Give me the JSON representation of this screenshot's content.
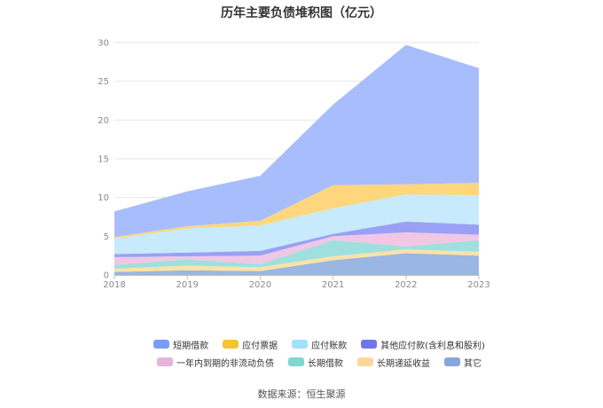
{
  "chart_data": {
    "type": "area",
    "stacked": true,
    "title": "历年主要负债堆积图（亿元）",
    "categories": [
      "2018",
      "2019",
      "2020",
      "2021",
      "2022",
      "2023"
    ],
    "ylim": [
      0,
      30
    ],
    "yticks": [
      0,
      5,
      10,
      15,
      20,
      25,
      30
    ],
    "grid": true,
    "legend_position": "bottom",
    "series": [
      {
        "name": "其它",
        "color": "#9ab6e2",
        "values": [
          0.4,
          0.6,
          0.5,
          1.9,
          2.8,
          2.5
        ]
      },
      {
        "name": "长期递延收益",
        "color": "#fde2a6",
        "values": [
          0.4,
          0.6,
          0.5,
          0.5,
          0.5,
          0.5
        ]
      },
      {
        "name": "长期借款",
        "color": "#9fe0de",
        "values": [
          0.5,
          0.8,
          0.4,
          2.1,
          0.4,
          1.5
        ]
      },
      {
        "name": "一年内到期的非流动负债",
        "color": "#f1c7e6",
        "values": [
          1.0,
          0.4,
          1.1,
          0.5,
          1.8,
          0.7
        ]
      },
      {
        "name": "其他应付款(含利息和股利)",
        "color": "#9aa1f4",
        "values": [
          0.4,
          0.5,
          0.6,
          0.3,
          1.4,
          1.3
        ]
      },
      {
        "name": "应付账款",
        "color": "#c7eafc",
        "values": [
          2.0,
          3.1,
          3.3,
          3.3,
          3.5,
          3.8
        ]
      },
      {
        "name": "应付票据",
        "color": "#fdd67e",
        "values": [
          0.2,
          0.3,
          0.6,
          3.0,
          1.3,
          1.6
        ]
      },
      {
        "name": "短期借款",
        "color": "#a8bdfb",
        "values": [
          3.3,
          4.5,
          5.8,
          10.4,
          18.0,
          14.8
        ]
      }
    ]
  },
  "legend": {
    "rows": [
      [
        {
          "label": "短期借款",
          "color": "#7b9cf6"
        },
        {
          "label": "应付票据",
          "color": "#f7c232"
        },
        {
          "label": "应付账款",
          "color": "#a3e0fb"
        },
        {
          "label": "其他应付款(含利息和股利)",
          "color": "#6f76ec"
        }
      ],
      [
        {
          "label": "一年内到期的非流动负债",
          "color": "#e7b3dc"
        },
        {
          "label": "长期借款",
          "color": "#7fd6d3"
        },
        {
          "label": "长期递延收益",
          "color": "#fbd79b"
        },
        {
          "label": "其它",
          "color": "#87a7dc"
        }
      ]
    ]
  },
  "source": "数据来源：恒生聚源"
}
